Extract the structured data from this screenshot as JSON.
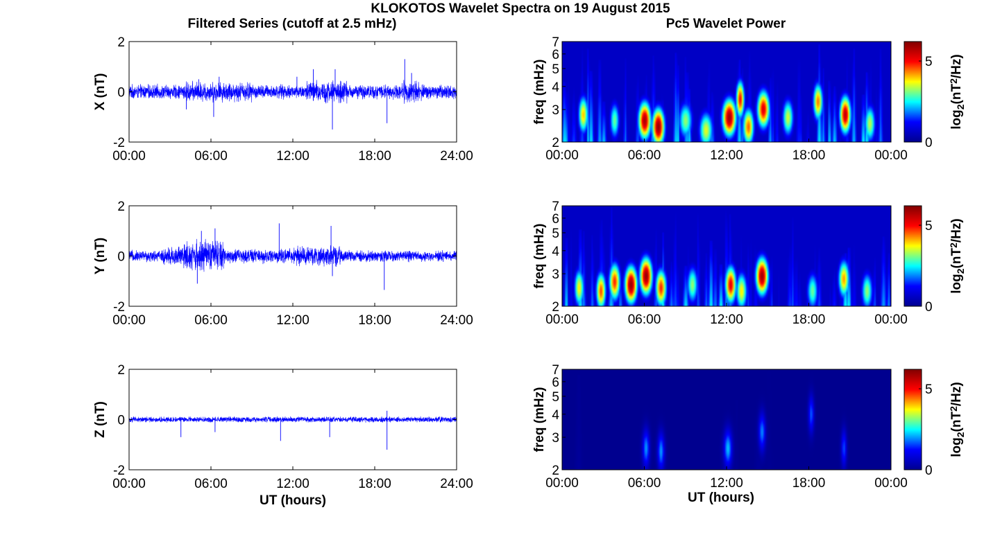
{
  "figure": {
    "title": "KLOKOTOS Wavelet Spectra on 19 August 2015",
    "left_column_title": "Filtered Series (cutoff at 2.5 mHz)",
    "right_column_title": "Pc5 Wavelet Power",
    "colormap": [
      "#00008f",
      "#0000ff",
      "#00ffff",
      "#ffff00",
      "#ff0000",
      "#800000"
    ]
  },
  "chart_data": [
    {
      "type": "line",
      "component": "X",
      "ylabel": "X (nT)",
      "xlabel": "",
      "x_ticks": [
        "00:00",
        "06:00",
        "12:00",
        "18:00",
        "24:00"
      ],
      "y_ticks": [
        "-2",
        "0",
        "2"
      ],
      "xlim": [
        0,
        24
      ],
      "ylim": [
        -2,
        2
      ],
      "color": "#0000ff",
      "noise_envelope": [
        {
          "t_range": [
            0,
            4
          ],
          "amplitude_nT": 0.25
        },
        {
          "t_range": [
            4,
            9
          ],
          "amplitude_nT": 0.35
        },
        {
          "t_range": [
            9,
            13
          ],
          "amplitude_nT": 0.25
        },
        {
          "t_range": [
            13,
            16
          ],
          "amplitude_nT": 0.4
        },
        {
          "t_range": [
            16,
            20
          ],
          "amplitude_nT": 0.25
        },
        {
          "t_range": [
            20,
            21.5
          ],
          "amplitude_nT": 0.4
        },
        {
          "t_range": [
            21.5,
            24
          ],
          "amplitude_nT": 0.25
        }
      ],
      "spikes": [
        {
          "t": 4.2,
          "value": -0.7
        },
        {
          "t": 5.1,
          "value": 0.5
        },
        {
          "t": 6.2,
          "value": -1.0
        },
        {
          "t": 6.6,
          "value": 0.6
        },
        {
          "t": 12.3,
          "value": 0.6
        },
        {
          "t": 13.5,
          "value": 0.9
        },
        {
          "t": 14.9,
          "value": -1.5
        },
        {
          "t": 15.1,
          "value": 0.9
        },
        {
          "t": 18.9,
          "value": -1.25
        },
        {
          "t": 20.2,
          "value": 1.3
        },
        {
          "t": 20.7,
          "value": 0.75
        }
      ]
    },
    {
      "type": "heatmap",
      "component": "X",
      "ylabel": "freq (mHz)",
      "xlabel": "",
      "x_ticks": [
        "00:00",
        "06:00",
        "12:00",
        "18:00",
        "00:00"
      ],
      "y_ticks": [
        "2",
        "3",
        "4",
        "5",
        "6",
        "7"
      ],
      "xlim": [
        0,
        24
      ],
      "ylim": [
        2,
        7
      ],
      "y_scale": "log",
      "colorbar": {
        "label": "log2(nT2/Hz)",
        "ticks": [
          "0",
          "5"
        ],
        "range": [
          0,
          6.2
        ]
      },
      "background_power": 2.0,
      "blobs": [
        {
          "t": 1.5,
          "f": 2.8,
          "power": 4.0,
          "width_h": 0.35
        },
        {
          "t": 3.8,
          "f": 2.6,
          "power": 3.0,
          "width_h": 0.35
        },
        {
          "t": 6.0,
          "f": 2.6,
          "power": 5.8,
          "width_h": 0.45
        },
        {
          "t": 7.0,
          "f": 2.4,
          "power": 6.0,
          "width_h": 0.45
        },
        {
          "t": 9.0,
          "f": 2.6,
          "power": 3.2,
          "width_h": 0.5
        },
        {
          "t": 10.5,
          "f": 2.3,
          "power": 3.6,
          "width_h": 0.5
        },
        {
          "t": 12.2,
          "f": 2.7,
          "power": 5.9,
          "width_h": 0.5
        },
        {
          "t": 13.0,
          "f": 3.4,
          "power": 5.0,
          "width_h": 0.3
        },
        {
          "t": 13.6,
          "f": 2.4,
          "power": 4.5,
          "width_h": 0.4
        },
        {
          "t": 14.7,
          "f": 3.0,
          "power": 5.3,
          "width_h": 0.45
        },
        {
          "t": 16.5,
          "f": 2.7,
          "power": 3.5,
          "width_h": 0.4
        },
        {
          "t": 18.7,
          "f": 3.3,
          "power": 4.4,
          "width_h": 0.35
        },
        {
          "t": 20.7,
          "f": 2.8,
          "power": 5.6,
          "width_h": 0.4
        },
        {
          "t": 22.5,
          "f": 2.5,
          "power": 3.4,
          "width_h": 0.4
        }
      ]
    },
    {
      "type": "line",
      "component": "Y",
      "ylabel": "Y (nT)",
      "xlabel": "",
      "x_ticks": [
        "00:00",
        "06:00",
        "12:00",
        "18:00",
        "24:00"
      ],
      "y_ticks": [
        "-2",
        "0",
        "2"
      ],
      "xlim": [
        0,
        24
      ],
      "ylim": [
        -2,
        2
      ],
      "color": "#0000ff",
      "noise_envelope": [
        {
          "t_range": [
            0,
            2.5
          ],
          "amplitude_nT": 0.2
        },
        {
          "t_range": [
            2.5,
            4
          ],
          "amplitude_nT": 0.35
        },
        {
          "t_range": [
            4,
            7
          ],
          "amplitude_nT": 0.55
        },
        {
          "t_range": [
            7,
            12
          ],
          "amplitude_nT": 0.25
        },
        {
          "t_range": [
            12,
            15.5
          ],
          "amplitude_nT": 0.35
        },
        {
          "t_range": [
            15.5,
            24
          ],
          "amplitude_nT": 0.2
        }
      ],
      "spikes": [
        {
          "t": 5.0,
          "value": -1.1
        },
        {
          "t": 5.3,
          "value": 1.0
        },
        {
          "t": 6.3,
          "value": 1.1
        },
        {
          "t": 11.0,
          "value": 1.3
        },
        {
          "t": 14.8,
          "value": 1.2
        },
        {
          "t": 14.9,
          "value": -0.8
        },
        {
          "t": 18.7,
          "value": -1.35
        }
      ]
    },
    {
      "type": "heatmap",
      "component": "Y",
      "ylabel": "freq (mHz)",
      "xlabel": "",
      "x_ticks": [
        "00:00",
        "06:00",
        "12:00",
        "18:00",
        "00:00"
      ],
      "y_ticks": [
        "2",
        "3",
        "4",
        "5",
        "6",
        "7"
      ],
      "xlim": [
        0,
        24
      ],
      "ylim": [
        2,
        7
      ],
      "y_scale": "log",
      "colorbar": {
        "label": "log2(nT2/Hz)",
        "ticks": [
          "0",
          "5"
        ],
        "range": [
          0,
          6.2
        ]
      },
      "background_power": 2.0,
      "blobs": [
        {
          "t": 1.2,
          "f": 2.5,
          "power": 3.8,
          "width_h": 0.35
        },
        {
          "t": 2.8,
          "f": 2.4,
          "power": 4.6,
          "width_h": 0.35
        },
        {
          "t": 3.8,
          "f": 2.7,
          "power": 4.8,
          "width_h": 0.4
        },
        {
          "t": 5.0,
          "f": 2.6,
          "power": 6.0,
          "width_h": 0.45
        },
        {
          "t": 6.1,
          "f": 2.9,
          "power": 6.0,
          "width_h": 0.45
        },
        {
          "t": 7.2,
          "f": 2.5,
          "power": 4.8,
          "width_h": 0.4
        },
        {
          "t": 9.5,
          "f": 2.6,
          "power": 3.2,
          "width_h": 0.4
        },
        {
          "t": 12.3,
          "f": 2.6,
          "power": 5.2,
          "width_h": 0.4
        },
        {
          "t": 13.1,
          "f": 2.4,
          "power": 3.8,
          "width_h": 0.4
        },
        {
          "t": 14.6,
          "f": 2.9,
          "power": 5.9,
          "width_h": 0.45
        },
        {
          "t": 18.3,
          "f": 2.4,
          "power": 3.0,
          "width_h": 0.4
        },
        {
          "t": 20.6,
          "f": 2.8,
          "power": 4.2,
          "width_h": 0.4
        },
        {
          "t": 22.3,
          "f": 2.4,
          "power": 3.2,
          "width_h": 0.4
        }
      ]
    },
    {
      "type": "line",
      "component": "Z",
      "ylabel": "Z (nT)",
      "xlabel": "UT (hours)",
      "x_ticks": [
        "00:00",
        "06:00",
        "12:00",
        "18:00",
        "24:00"
      ],
      "y_ticks": [
        "-2",
        "0",
        "2"
      ],
      "xlim": [
        0,
        24
      ],
      "ylim": [
        -2,
        2
      ],
      "color": "#0000ff",
      "noise_envelope": [
        {
          "t_range": [
            0,
            24
          ],
          "amplitude_nT": 0.1
        }
      ],
      "spikes": [
        {
          "t": 3.8,
          "value": -0.7
        },
        {
          "t": 6.3,
          "value": -0.5
        },
        {
          "t": 11.1,
          "value": -0.85
        },
        {
          "t": 14.7,
          "value": -0.7
        },
        {
          "t": 18.9,
          "value": -1.2
        },
        {
          "t": 18.9,
          "value": 0.35
        }
      ]
    },
    {
      "type": "heatmap",
      "component": "Z",
      "ylabel": "freq (mHz)",
      "xlabel": "UT (hours)",
      "x_ticks": [
        "00:00",
        "06:00",
        "12:00",
        "18:00",
        "00:00"
      ],
      "y_ticks": [
        "2",
        "3",
        "4",
        "5",
        "6",
        "7"
      ],
      "xlim": [
        0,
        24
      ],
      "ylim": [
        2,
        7
      ],
      "y_scale": "log",
      "colorbar": {
        "label": "log2(nT2/Hz)",
        "ticks": [
          "0",
          "5"
        ],
        "range": [
          0,
          6.2
        ]
      },
      "background_power": 0.1,
      "blobs": [
        {
          "t": 6.1,
          "f": 2.6,
          "power": 2.0,
          "width_h": 0.25
        },
        {
          "t": 7.2,
          "f": 2.5,
          "power": 2.0,
          "width_h": 0.25
        },
        {
          "t": 12.1,
          "f": 2.6,
          "power": 2.2,
          "width_h": 0.3
        },
        {
          "t": 14.6,
          "f": 3.2,
          "power": 1.9,
          "width_h": 0.25
        },
        {
          "t": 18.2,
          "f": 4.0,
          "power": 1.7,
          "width_h": 0.2
        },
        {
          "t": 20.6,
          "f": 2.6,
          "power": 1.6,
          "width_h": 0.2
        }
      ]
    }
  ]
}
